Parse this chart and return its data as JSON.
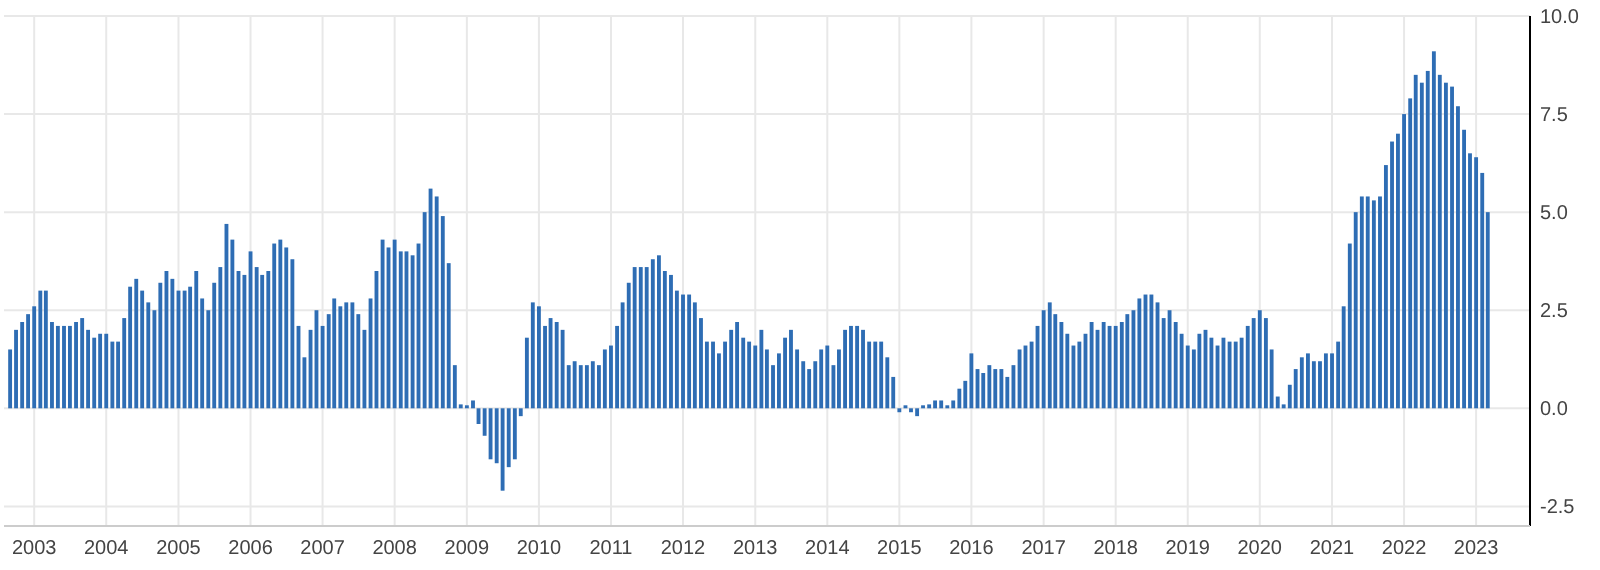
{
  "chart_data": {
    "type": "bar",
    "color": "#2e6db4",
    "grid": true,
    "x": [
      "2002-09",
      "2002-10",
      "2002-11",
      "2002-12",
      "2003-01",
      "2003-02",
      "2003-03",
      "2003-04",
      "2003-05",
      "2003-06",
      "2003-07",
      "2003-08",
      "2003-09",
      "2003-10",
      "2003-11",
      "2003-12",
      "2004-01",
      "2004-02",
      "2004-03",
      "2004-04",
      "2004-05",
      "2004-06",
      "2004-07",
      "2004-08",
      "2004-09",
      "2004-10",
      "2004-11",
      "2004-12",
      "2005-01",
      "2005-02",
      "2005-03",
      "2005-04",
      "2005-05",
      "2005-06",
      "2005-07",
      "2005-08",
      "2005-09",
      "2005-10",
      "2005-11",
      "2005-12",
      "2006-01",
      "2006-02",
      "2006-03",
      "2006-04",
      "2006-05",
      "2006-06",
      "2006-07",
      "2006-08",
      "2006-09",
      "2006-10",
      "2006-11",
      "2006-12",
      "2007-01",
      "2007-02",
      "2007-03",
      "2007-04",
      "2007-05",
      "2007-06",
      "2007-07",
      "2007-08",
      "2007-09",
      "2007-10",
      "2007-11",
      "2007-12",
      "2008-01",
      "2008-02",
      "2008-03",
      "2008-04",
      "2008-05",
      "2008-06",
      "2008-07",
      "2008-08",
      "2008-09",
      "2008-10",
      "2008-11",
      "2008-12",
      "2009-01",
      "2009-02",
      "2009-03",
      "2009-04",
      "2009-05",
      "2009-06",
      "2009-07",
      "2009-08",
      "2009-09",
      "2009-10",
      "2009-11",
      "2009-12",
      "2010-01",
      "2010-02",
      "2010-03",
      "2010-04",
      "2010-05",
      "2010-06",
      "2010-07",
      "2010-08",
      "2010-09",
      "2010-10",
      "2010-11",
      "2010-12",
      "2011-01",
      "2011-02",
      "2011-03",
      "2011-04",
      "2011-05",
      "2011-06",
      "2011-07",
      "2011-08",
      "2011-09",
      "2011-10",
      "2011-11",
      "2011-12",
      "2012-01",
      "2012-02",
      "2012-03",
      "2012-04",
      "2012-05",
      "2012-06",
      "2012-07",
      "2012-08",
      "2012-09",
      "2012-10",
      "2012-11",
      "2012-12",
      "2013-01",
      "2013-02",
      "2013-03",
      "2013-04",
      "2013-05",
      "2013-06",
      "2013-07",
      "2013-08",
      "2013-09",
      "2013-10",
      "2013-11",
      "2013-12",
      "2014-01",
      "2014-02",
      "2014-03",
      "2014-04",
      "2014-05",
      "2014-06",
      "2014-07",
      "2014-08",
      "2014-09",
      "2014-10",
      "2014-11",
      "2014-12",
      "2015-01",
      "2015-02",
      "2015-03",
      "2015-04",
      "2015-05",
      "2015-06",
      "2015-07",
      "2015-08",
      "2015-09",
      "2015-10",
      "2015-11",
      "2015-12",
      "2016-01",
      "2016-02",
      "2016-03",
      "2016-04",
      "2016-05",
      "2016-06",
      "2016-07",
      "2016-08",
      "2016-09",
      "2016-10",
      "2016-11",
      "2016-12",
      "2017-01",
      "2017-02",
      "2017-03",
      "2017-04",
      "2017-05",
      "2017-06",
      "2017-07",
      "2017-08",
      "2017-09",
      "2017-10",
      "2017-11",
      "2017-12",
      "2018-01",
      "2018-02",
      "2018-03",
      "2018-04",
      "2018-05",
      "2018-06",
      "2018-07",
      "2018-08",
      "2018-09",
      "2018-10",
      "2018-11",
      "2018-12",
      "2019-01",
      "2019-02",
      "2019-03",
      "2019-04",
      "2019-05",
      "2019-06",
      "2019-07",
      "2019-08",
      "2019-09",
      "2019-10",
      "2019-11",
      "2019-12",
      "2020-01",
      "2020-02",
      "2020-03",
      "2020-04",
      "2020-05",
      "2020-06",
      "2020-07",
      "2020-08",
      "2020-09",
      "2020-10",
      "2020-11",
      "2020-12",
      "2021-01",
      "2021-02",
      "2021-03",
      "2021-04",
      "2021-05",
      "2021-06",
      "2021-07",
      "2021-08",
      "2021-09",
      "2021-10",
      "2021-11",
      "2021-12",
      "2022-01",
      "2022-02",
      "2022-03",
      "2022-04",
      "2022-05",
      "2022-06",
      "2022-07",
      "2022-08",
      "2022-09",
      "2022-10",
      "2022-11",
      "2022-12",
      "2023-01",
      "2023-02",
      "2023-03"
    ],
    "values": [
      1.5,
      2.0,
      2.2,
      2.4,
      2.6,
      3.0,
      3.0,
      2.2,
      2.1,
      2.1,
      2.1,
      2.2,
      2.3,
      2.0,
      1.8,
      1.9,
      1.9,
      1.7,
      1.7,
      2.3,
      3.1,
      3.3,
      3.0,
      2.7,
      2.5,
      3.2,
      3.5,
      3.3,
      3.0,
      3.0,
      3.1,
      3.5,
      2.8,
      2.5,
      3.2,
      3.6,
      4.7,
      4.3,
      3.5,
      3.4,
      4.0,
      3.6,
      3.4,
      3.5,
      4.2,
      4.3,
      4.1,
      3.8,
      2.1,
      1.3,
      2.0,
      2.5,
      2.1,
      2.4,
      2.8,
      2.6,
      2.7,
      2.7,
      2.4,
      2.0,
      2.8,
      3.5,
      4.3,
      4.1,
      4.3,
      4.0,
      4.0,
      3.9,
      4.2,
      5.0,
      5.6,
      5.4,
      4.9,
      3.7,
      1.1,
      0.1,
      0.0,
      0.2,
      -0.4,
      -0.7,
      -1.3,
      -1.4,
      -2.1,
      -1.5,
      -1.3,
      -0.2,
      1.8,
      2.7,
      2.6,
      2.1,
      2.3,
      2.2,
      2.0,
      1.1,
      1.2,
      1.1,
      1.1,
      1.2,
      1.1,
      1.5,
      1.6,
      2.1,
      2.7,
      3.2,
      3.6,
      3.6,
      3.6,
      3.8,
      3.9,
      3.5,
      3.4,
      3.0,
      2.9,
      2.9,
      2.7,
      2.3,
      1.7,
      1.7,
      1.4,
      1.7,
      2.0,
      2.2,
      1.8,
      1.7,
      1.6,
      2.0,
      1.5,
      1.1,
      1.4,
      1.8,
      2.0,
      1.5,
      1.2,
      1.0,
      1.2,
      1.5,
      1.6,
      1.1,
      1.5,
      2.0,
      2.1,
      2.1,
      2.0,
      1.7,
      1.7,
      1.7,
      1.3,
      0.8,
      -0.1,
      0.0,
      -0.1,
      -0.2,
      0.0,
      0.1,
      0.2,
      0.2,
      0.0,
      0.2,
      0.5,
      0.7,
      1.4,
      1.0,
      0.9,
      1.1,
      1.0,
      1.0,
      0.8,
      1.1,
      1.5,
      1.6,
      1.7,
      2.1,
      2.5,
      2.7,
      2.4,
      2.2,
      1.9,
      1.6,
      1.7,
      1.9,
      2.2,
      2.0,
      2.2,
      2.1,
      2.1,
      2.2,
      2.4,
      2.5,
      2.8,
      2.9,
      2.9,
      2.7,
      2.3,
      2.5,
      2.2,
      1.9,
      1.6,
      1.5,
      1.9,
      2.0,
      1.8,
      1.6,
      1.8,
      1.7,
      1.7,
      1.8,
      2.1,
      2.3,
      2.5,
      2.3,
      1.5,
      0.3,
      0.1,
      0.6,
      1.0,
      1.3,
      1.4,
      1.2,
      1.2,
      1.4,
      1.4,
      1.7,
      2.6,
      4.2,
      5.0,
      5.4,
      5.4,
      5.3,
      5.4,
      6.2,
      6.8,
      7.0,
      7.5,
      7.9,
      8.5,
      8.3,
      8.6,
      9.1,
      8.5,
      8.3,
      8.2,
      7.7,
      7.1,
      6.5,
      6.4,
      6.0,
      5.0
    ],
    "xlim": [
      "2002-08",
      "2023-10"
    ],
    "xticks": [
      "2003",
      "2004",
      "2005",
      "2006",
      "2007",
      "2008",
      "2009",
      "2010",
      "2011",
      "2012",
      "2013",
      "2014",
      "2015",
      "2016",
      "2017",
      "2018",
      "2019",
      "2020",
      "2021",
      "2022",
      "2023"
    ],
    "ylim": [
      -3,
      10
    ],
    "yticks": [
      {
        "value": -2.5,
        "label": "-2.5"
      },
      {
        "value": 0,
        "label": "0.0"
      },
      {
        "value": 2.5,
        "label": "2.5"
      },
      {
        "value": 5,
        "label": "5.0"
      },
      {
        "value": 7.5,
        "label": "7.5"
      },
      {
        "value": 10,
        "label": "10.0"
      }
    ]
  }
}
